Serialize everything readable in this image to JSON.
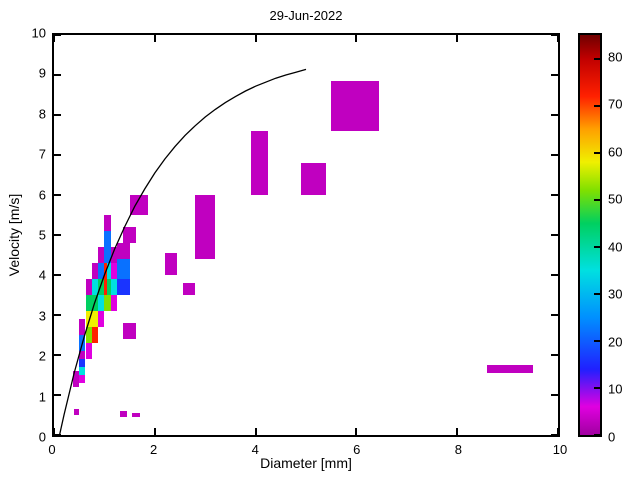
{
  "chart_data": {
    "type": "heatmap",
    "title": "29-Jun-2022",
    "xlabel": "Diameter [mm]",
    "ylabel": "Velocity [m/s]",
    "xlim": [
      0,
      10
    ],
    "ylim": [
      0,
      10
    ],
    "xticks": [
      0,
      2,
      4,
      6,
      8,
      10
    ],
    "yticks": [
      0,
      1,
      2,
      3,
      4,
      5,
      6,
      7,
      8,
      9,
      10
    ],
    "grid": false,
    "legend": "none",
    "colorbar": {
      "position": "right",
      "min": 0,
      "max": 85,
      "ticks": [
        0,
        10,
        20,
        30,
        40,
        50,
        60,
        70,
        80
      ]
    },
    "colormap": [
      [
        0,
        "#A000A0"
      ],
      [
        6,
        "#E000E0"
      ],
      [
        14,
        "#2020FF"
      ],
      [
        25,
        "#0090FF"
      ],
      [
        35,
        "#00E0E0"
      ],
      [
        45,
        "#00D060"
      ],
      [
        52,
        "#80E000"
      ],
      [
        58,
        "#F0F000"
      ],
      [
        65,
        "#FFA000"
      ],
      [
        72,
        "#FF2000"
      ],
      [
        80,
        "#C00000"
      ],
      [
        85,
        "#700000"
      ]
    ],
    "cells_format": [
      "x0_mm",
      "x1_mm",
      "y0_ms",
      "y1_ms",
      "count"
    ],
    "cells": [
      [
        0.375,
        0.5,
        1.2,
        1.6,
        3
      ],
      [
        0.4,
        0.5,
        0.5,
        0.65,
        3
      ],
      [
        0.5,
        0.625,
        1.3,
        1.5,
        6
      ],
      [
        0.5,
        0.625,
        1.5,
        1.7,
        35
      ],
      [
        0.5,
        0.625,
        1.7,
        1.9,
        16
      ],
      [
        0.5,
        0.625,
        1.9,
        2.1,
        3
      ],
      [
        0.5,
        0.625,
        2.1,
        2.5,
        22
      ],
      [
        0.5,
        0.625,
        2.5,
        2.9,
        3
      ],
      [
        0.625,
        0.75,
        1.9,
        2.3,
        6
      ],
      [
        0.625,
        0.75,
        2.3,
        2.7,
        52
      ],
      [
        0.625,
        0.75,
        2.7,
        3.1,
        58
      ],
      [
        0.625,
        0.75,
        3.1,
        3.5,
        45
      ],
      [
        0.625,
        0.75,
        3.5,
        3.9,
        3
      ],
      [
        0.75,
        0.875,
        2.3,
        2.7,
        72
      ],
      [
        0.75,
        0.875,
        2.7,
        3.1,
        58
      ],
      [
        0.75,
        0.875,
        3.1,
        3.5,
        45
      ],
      [
        0.75,
        0.875,
        3.5,
        3.9,
        35
      ],
      [
        0.75,
        0.875,
        3.9,
        4.3,
        3
      ],
      [
        0.875,
        1.0,
        2.7,
        3.1,
        6
      ],
      [
        0.875,
        1.0,
        3.1,
        3.5,
        35
      ],
      [
        0.875,
        1.0,
        3.5,
        3.9,
        45
      ],
      [
        0.875,
        1.0,
        3.9,
        4.3,
        22
      ],
      [
        0.875,
        1.0,
        4.3,
        4.7,
        3
      ],
      [
        1.0,
        1.125,
        3.1,
        3.5,
        52
      ],
      [
        1.0,
        1.06,
        3.5,
        4.3,
        72
      ],
      [
        1.06,
        1.125,
        3.5,
        3.9,
        45
      ],
      [
        1.06,
        1.125,
        3.9,
        4.3,
        35
      ],
      [
        1.0,
        1.125,
        4.3,
        5.1,
        22
      ],
      [
        1.0,
        1.125,
        5.1,
        5.5,
        3
      ],
      [
        1.125,
        1.25,
        3.1,
        3.5,
        6
      ],
      [
        1.125,
        1.25,
        3.5,
        3.9,
        35
      ],
      [
        1.125,
        1.25,
        3.9,
        4.3,
        6
      ],
      [
        1.125,
        1.25,
        4.3,
        4.7,
        3
      ],
      [
        1.25,
        1.5,
        3.5,
        3.9,
        16
      ],
      [
        1.25,
        1.5,
        3.9,
        4.4,
        22
      ],
      [
        1.25,
        1.5,
        4.4,
        4.8,
        3
      ],
      [
        1.375,
        1.625,
        4.8,
        5.2,
        3
      ],
      [
        1.5,
        1.875,
        5.5,
        6.0,
        3
      ],
      [
        1.375,
        1.625,
        2.4,
        2.8,
        3
      ],
      [
        2.2,
        2.45,
        4.0,
        4.55,
        3
      ],
      [
        2.55,
        2.8,
        3.5,
        3.8,
        3
      ],
      [
        2.8,
        3.2,
        4.4,
        6.0,
        3
      ],
      [
        3.9,
        4.25,
        6.0,
        7.6,
        3
      ],
      [
        4.9,
        5.4,
        6.0,
        6.8,
        3
      ],
      [
        5.5,
        6.45,
        7.6,
        8.85,
        3
      ],
      [
        8.6,
        9.5,
        1.55,
        1.75,
        3
      ],
      [
        1.3,
        1.45,
        0.45,
        0.6,
        3
      ],
      [
        1.55,
        1.7,
        0.45,
        0.55,
        3
      ]
    ],
    "curve": {
      "name": "terminal-velocity-curve",
      "color": "#000000",
      "points": [
        [
          0.11,
          0.0
        ],
        [
          0.2,
          0.51
        ],
        [
          0.4,
          1.55
        ],
        [
          0.6,
          2.46
        ],
        [
          0.8,
          3.28
        ],
        [
          1.0,
          4.0
        ],
        [
          1.2,
          4.64
        ],
        [
          1.4,
          5.2
        ],
        [
          1.6,
          5.71
        ],
        [
          1.8,
          6.15
        ],
        [
          2.0,
          6.55
        ],
        [
          2.2,
          6.9
        ],
        [
          2.4,
          7.21
        ],
        [
          2.6,
          7.49
        ],
        [
          2.8,
          7.73
        ],
        [
          3.0,
          7.95
        ],
        [
          3.2,
          8.14
        ],
        [
          3.4,
          8.31
        ],
        [
          3.6,
          8.46
        ],
        [
          3.8,
          8.6
        ],
        [
          4.0,
          8.72
        ],
        [
          4.2,
          8.82
        ],
        [
          4.4,
          8.92
        ],
        [
          4.6,
          9.0
        ],
        [
          4.8,
          9.07
        ],
        [
          5.0,
          9.14
        ]
      ]
    }
  }
}
